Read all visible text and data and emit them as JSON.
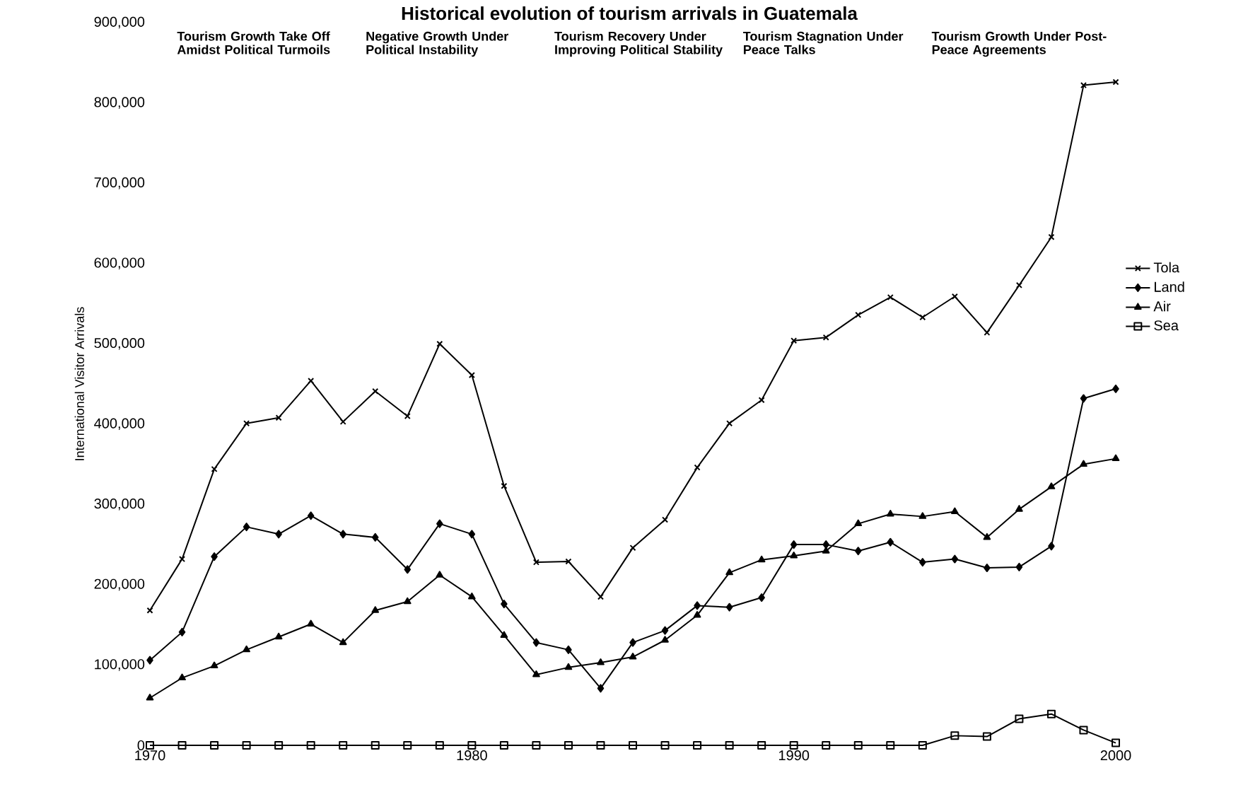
{
  "chart_data": {
    "type": "line",
    "title": "Historical evolution of tourism arrivals in Guatemala",
    "ylabel": "International Visitor Arrivals",
    "x": [
      1970,
      1971,
      1972,
      1973,
      1974,
      1975,
      1976,
      1977,
      1978,
      1979,
      1980,
      1981,
      1982,
      1983,
      1984,
      1985,
      1986,
      1987,
      1988,
      1989,
      1990,
      1991,
      1992,
      1993,
      1994,
      1995,
      1996,
      1997,
      1998,
      1999,
      2000
    ],
    "series": [
      {
        "name": "Tola",
        "color": "#000000",
        "marker": "cross",
        "values": [
          168000,
          232000,
          344000,
          401000,
          408000,
          454000,
          403000,
          441000,
          410000,
          500000,
          461000,
          323000,
          228000,
          229000,
          185000,
          246000,
          281000,
          346000,
          401000,
          430000,
          504000,
          508000,
          536000,
          558000,
          533000,
          559000,
          514000,
          573000,
          633000,
          822000,
          826000
        ]
      },
      {
        "name": "Land",
        "color": "#000000",
        "marker": "diamond",
        "values": [
          106000,
          141000,
          235000,
          272000,
          263000,
          286000,
          263000,
          259000,
          219000,
          276000,
          263000,
          176000,
          128000,
          119000,
          71000,
          128000,
          143000,
          174000,
          172000,
          184000,
          250000,
          250000,
          242000,
          253000,
          228000,
          232000,
          221000,
          222000,
          248000,
          432000,
          444000
        ]
      },
      {
        "name": "Air",
        "color": "#000000",
        "marker": "triangle",
        "values": [
          59000,
          84000,
          99000,
          119000,
          135000,
          151000,
          128000,
          168000,
          179000,
          212000,
          185000,
          137000,
          88000,
          97000,
          103000,
          110000,
          131000,
          162000,
          215000,
          231000,
          236000,
          242000,
          276000,
          288000,
          285000,
          291000,
          259000,
          294000,
          322000,
          350000,
          357000
        ]
      },
      {
        "name": "Sea",
        "color": "#000000",
        "marker": "square",
        "values": [
          0,
          0,
          0,
          0,
          0,
          0,
          0,
          0,
          0,
          0,
          0,
          0,
          0,
          0,
          0,
          0,
          0,
          0,
          0,
          0,
          0,
          0,
          0,
          0,
          0,
          12000,
          11000,
          33000,
          39000,
          19000,
          3000
        ]
      }
    ],
    "xlim": [
      1970,
      2000
    ],
    "ylim": [
      0,
      900000
    ],
    "xticks": [
      1970,
      1980,
      1990,
      2000
    ],
    "yticks": [
      0,
      {
        "value": 100000,
        "label": "100,000"
      },
      {
        "value": 200000,
        "label": "200,000"
      },
      {
        "value": 300000,
        "label": "300,000"
      },
      {
        "value": 400000,
        "label": "400,000"
      },
      {
        "value": 500000,
        "label": "500,000"
      },
      {
        "value": 600000,
        "label": "600,000"
      },
      {
        "value": 700000,
        "label": "700,000"
      },
      {
        "value": 800000,
        "label": "800,000"
      },
      {
        "value": 900000,
        "label": "900,000"
      }
    ],
    "legend": "right",
    "annotations": [
      "Tourism Growth Take Off Amidst Political Turmoils",
      "Negative Growth Under Political Instability",
      "Tourism Recovery Under Improving Political Stability",
      "Tourism Stagnation Under Peace Talks",
      "Tourism Growth Under Post-Peace Agreements"
    ]
  }
}
